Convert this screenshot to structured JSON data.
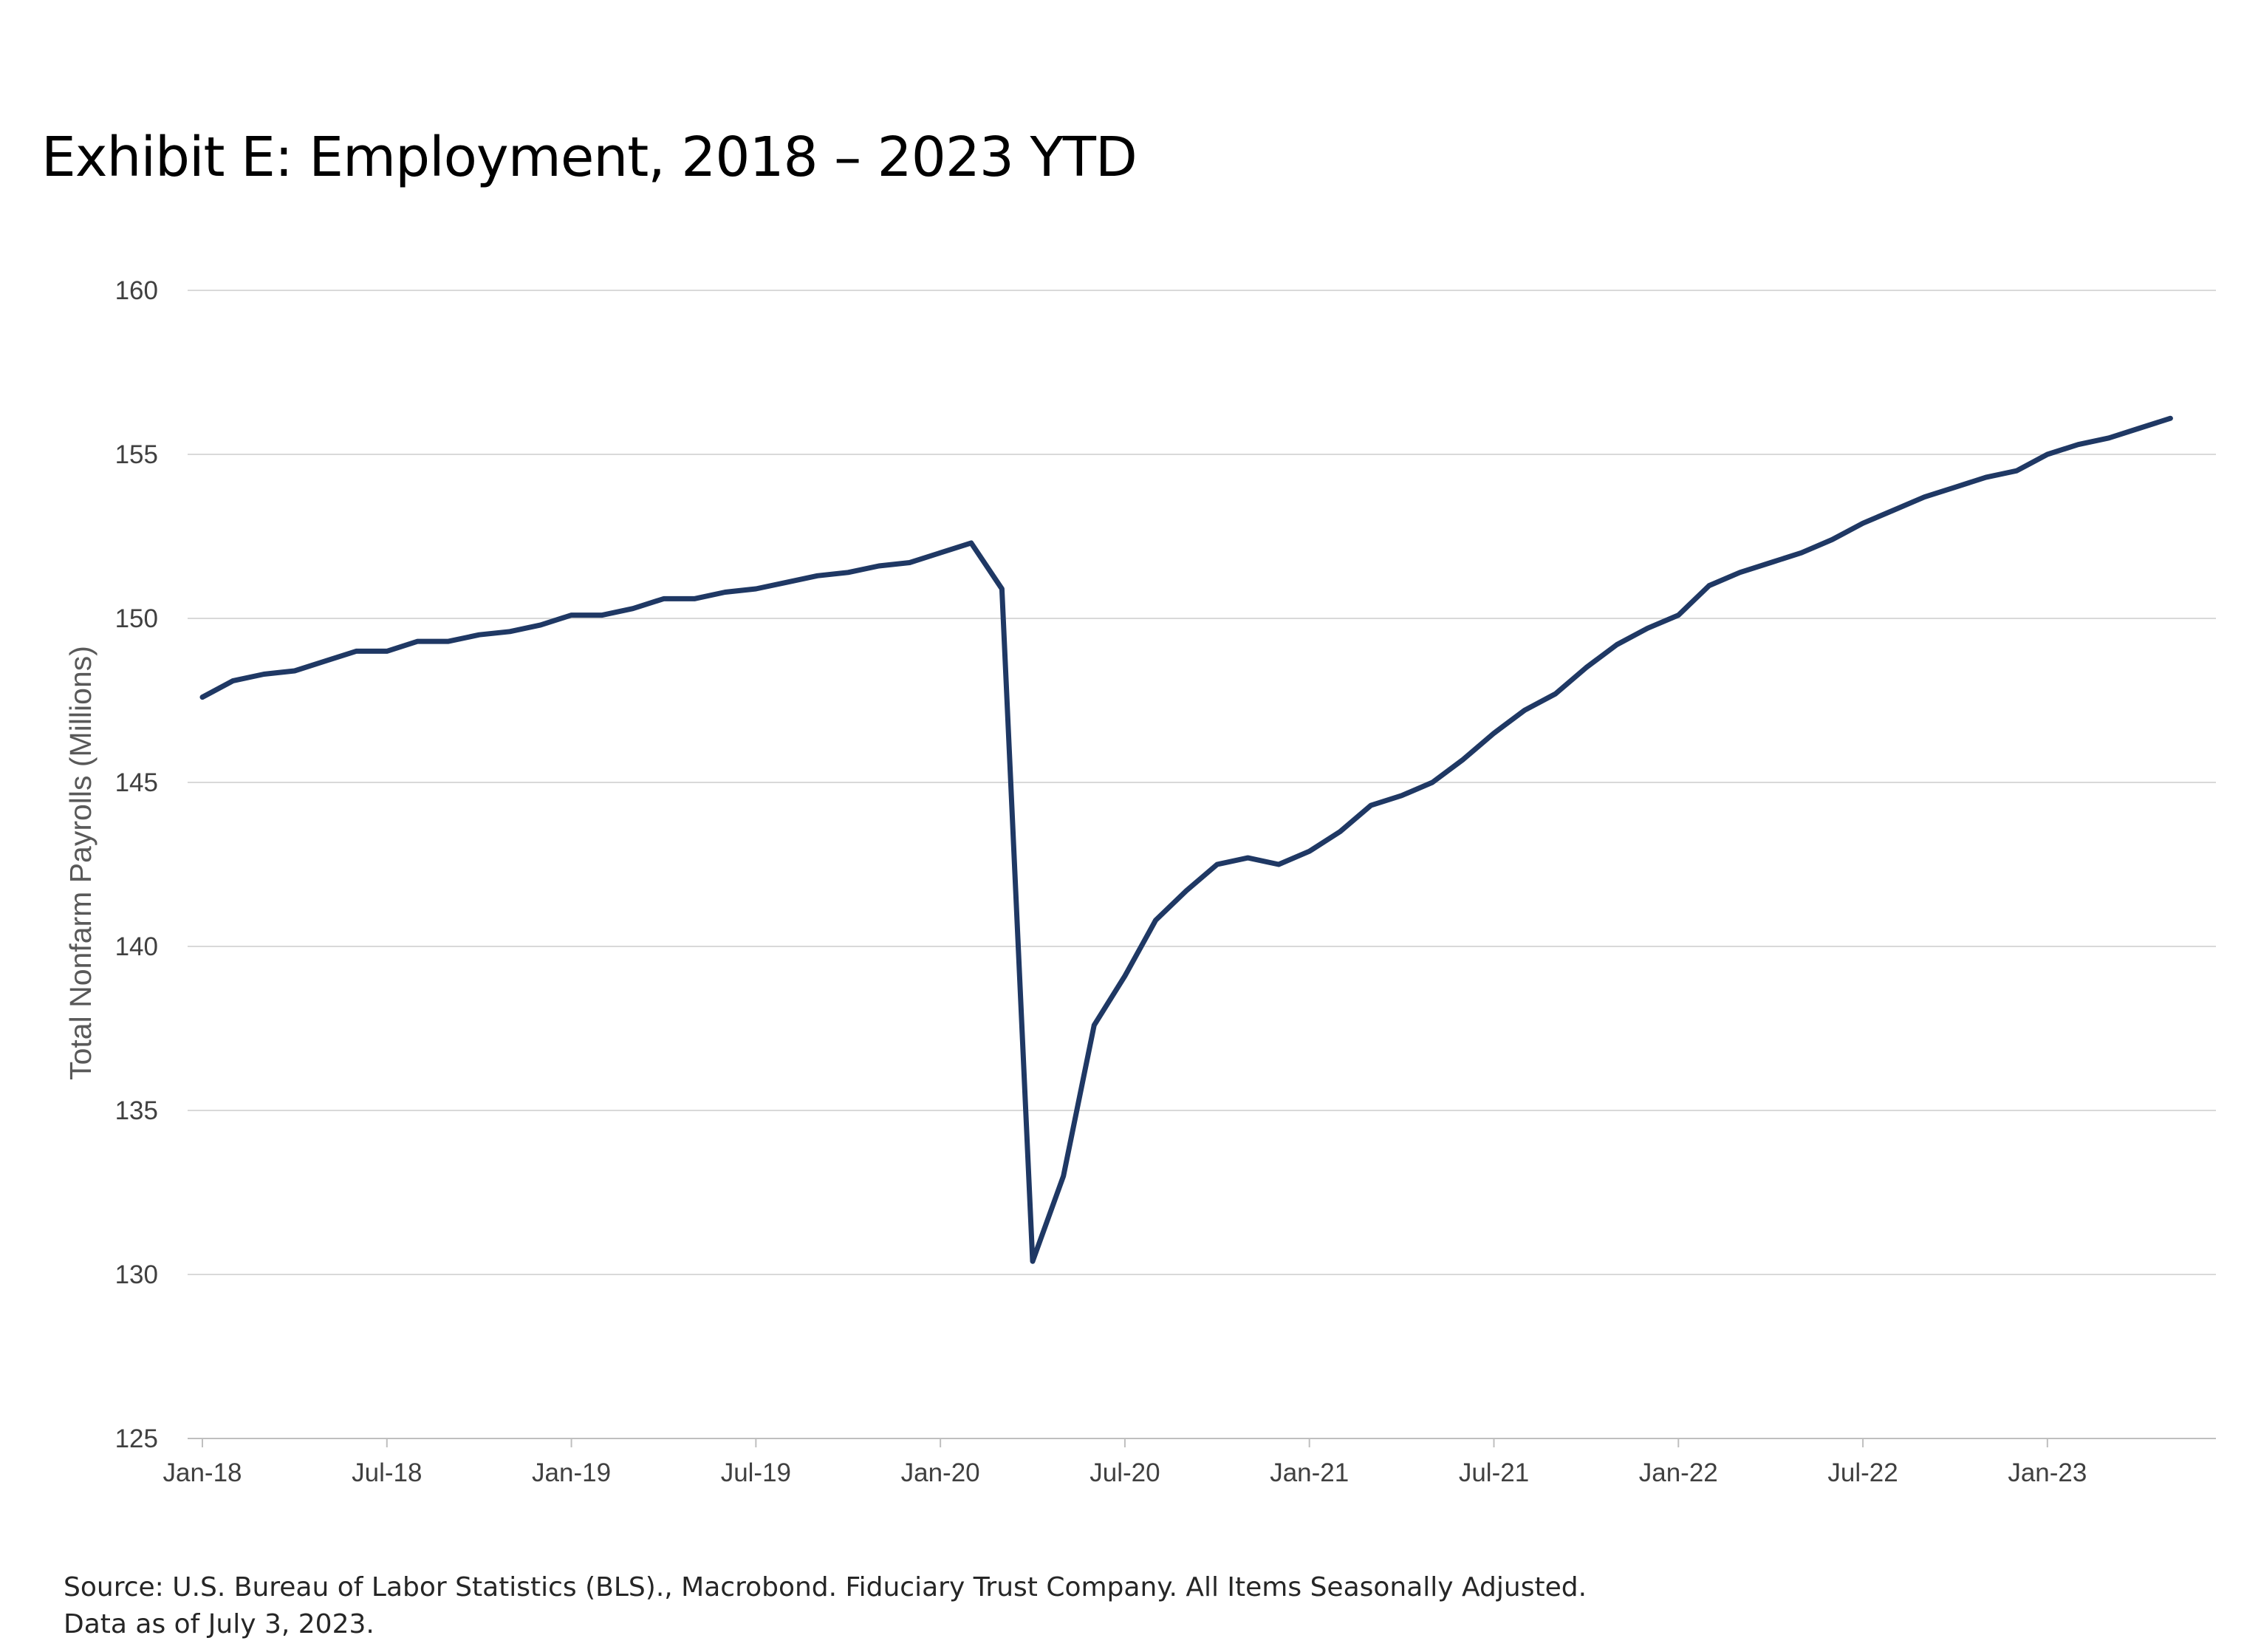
{
  "chart_data": {
    "type": "line",
    "title": "Exhibit E: Employment, 2018 – 2023 YTD",
    "ylabel": "Total Nonfarm Payrolls  (Millions)",
    "xlabel": "",
    "ylim": [
      125,
      160
    ],
    "yticks": [
      125,
      130,
      135,
      140,
      145,
      150,
      155,
      160
    ],
    "grid": true,
    "line_color": "#1f3864",
    "x_start": "2018-01",
    "x_end": "2023-06",
    "xticks": [
      {
        "label": "Jan-18",
        "month": "2018-01"
      },
      {
        "label": "Jul-18",
        "month": "2018-07"
      },
      {
        "label": "Jan-19",
        "month": "2019-01"
      },
      {
        "label": "Jul-19",
        "month": "2019-07"
      },
      {
        "label": "Jan-20",
        "month": "2020-01"
      },
      {
        "label": "Jul-20",
        "month": "2020-07"
      },
      {
        "label": "Jan-21",
        "month": "2021-01"
      },
      {
        "label": "Jul-21",
        "month": "2021-07"
      },
      {
        "label": "Jan-22",
        "month": "2022-01"
      },
      {
        "label": "Jul-22",
        "month": "2022-07"
      },
      {
        "label": "Jan-23",
        "month": "2023-01"
      }
    ],
    "series": [
      {
        "name": "",
        "points": [
          {
            "x": "2018-01",
            "y": 147.6
          },
          {
            "x": "2018-02",
            "y": 148.1
          },
          {
            "x": "2018-03",
            "y": 148.3
          },
          {
            "x": "2018-04",
            "y": 148.4
          },
          {
            "x": "2018-05",
            "y": 148.7
          },
          {
            "x": "2018-06",
            "y": 149.0
          },
          {
            "x": "2018-07",
            "y": 149.0
          },
          {
            "x": "2018-08",
            "y": 149.3
          },
          {
            "x": "2018-09",
            "y": 149.3
          },
          {
            "x": "2018-10",
            "y": 149.5
          },
          {
            "x": "2018-11",
            "y": 149.6
          },
          {
            "x": "2018-12",
            "y": 149.8
          },
          {
            "x": "2019-01",
            "y": 150.1
          },
          {
            "x": "2019-02",
            "y": 150.1
          },
          {
            "x": "2019-03",
            "y": 150.3
          },
          {
            "x": "2019-04",
            "y": 150.6
          },
          {
            "x": "2019-05",
            "y": 150.6
          },
          {
            "x": "2019-06",
            "y": 150.8
          },
          {
            "x": "2019-07",
            "y": 150.9
          },
          {
            "x": "2019-08",
            "y": 151.1
          },
          {
            "x": "2019-09",
            "y": 151.3
          },
          {
            "x": "2019-10",
            "y": 151.4
          },
          {
            "x": "2019-11",
            "y": 151.6
          },
          {
            "x": "2019-12",
            "y": 151.7
          },
          {
            "x": "2020-01",
            "y": 152.0
          },
          {
            "x": "2020-02",
            "y": 152.3
          },
          {
            "x": "2020-03",
            "y": 150.9
          },
          {
            "x": "2020-04",
            "y": 130.4
          },
          {
            "x": "2020-05",
            "y": 133.0
          },
          {
            "x": "2020-06",
            "y": 137.6
          },
          {
            "x": "2020-07",
            "y": 139.1
          },
          {
            "x": "2020-08",
            "y": 140.8
          },
          {
            "x": "2020-09",
            "y": 141.7
          },
          {
            "x": "2020-10",
            "y": 142.5
          },
          {
            "x": "2020-11",
            "y": 142.7
          },
          {
            "x": "2020-12",
            "y": 142.5
          },
          {
            "x": "2021-01",
            "y": 142.9
          },
          {
            "x": "2021-02",
            "y": 143.5
          },
          {
            "x": "2021-03",
            "y": 144.3
          },
          {
            "x": "2021-04",
            "y": 144.6
          },
          {
            "x": "2021-05",
            "y": 145.0
          },
          {
            "x": "2021-06",
            "y": 145.7
          },
          {
            "x": "2021-07",
            "y": 146.5
          },
          {
            "x": "2021-08",
            "y": 147.2
          },
          {
            "x": "2021-09",
            "y": 147.7
          },
          {
            "x": "2021-10",
            "y": 148.5
          },
          {
            "x": "2021-11",
            "y": 149.2
          },
          {
            "x": "2021-12",
            "y": 149.7
          },
          {
            "x": "2022-01",
            "y": 150.1
          },
          {
            "x": "2022-02",
            "y": 151.0
          },
          {
            "x": "2022-03",
            "y": 151.4
          },
          {
            "x": "2022-04",
            "y": 151.7
          },
          {
            "x": "2022-05",
            "y": 152.0
          },
          {
            "x": "2022-06",
            "y": 152.4
          },
          {
            "x": "2022-07",
            "y": 152.9
          },
          {
            "x": "2022-08",
            "y": 153.3
          },
          {
            "x": "2022-09",
            "y": 153.7
          },
          {
            "x": "2022-10",
            "y": 154.0
          },
          {
            "x": "2022-11",
            "y": 154.3
          },
          {
            "x": "2022-12",
            "y": 154.5
          },
          {
            "x": "2023-01",
            "y": 155.0
          },
          {
            "x": "2023-02",
            "y": 155.3
          },
          {
            "x": "2023-03",
            "y": 155.5
          },
          {
            "x": "2023-04",
            "y": 155.8
          },
          {
            "x": "2023-05",
            "y": 156.1
          }
        ]
      }
    ]
  },
  "footer": {
    "source_line_1": "Source: U.S. Bureau of Labor Statistics (BLS)., Macrobond. Fiduciary Trust Company. All Items Seasonally Adjusted.",
    "source_line_2": "Data as of July 3, 2023."
  }
}
